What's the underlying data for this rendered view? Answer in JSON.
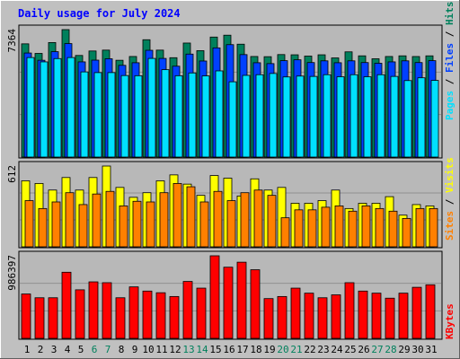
{
  "chart_data": {
    "type": "bar",
    "title": "Daily usage for July 2024",
    "categories": [
      "1",
      "2",
      "3",
      "4",
      "5",
      "6",
      "7",
      "8",
      "9",
      "10",
      "11",
      "12",
      "13",
      "14",
      "15",
      "16",
      "17",
      "18",
      "19",
      "20",
      "21",
      "22",
      "23",
      "24",
      "25",
      "26",
      "27",
      "28",
      "29",
      "30",
      "31"
    ],
    "weekend_days": [
      "6",
      "7",
      "13",
      "14",
      "20",
      "21",
      "27",
      "28"
    ],
    "colors": {
      "background": "#c0c0c0",
      "plot": "#b8b8b8",
      "title": "#0000ff",
      "hits": "#00805c",
      "files": "#0040ff",
      "pages": "#00e0ff",
      "visits": "#ffff00",
      "sites": "#ff8000",
      "kbytes": "#ff0000",
      "weekend_label": "#00805c",
      "weekday_label": "#000000"
    },
    "panels": [
      {
        "id": "requests",
        "max_label": "7364",
        "ymax": 7364,
        "legend": [
          "Pages",
          "Files",
          "Hits"
        ],
        "series": [
          {
            "name": "Hits",
            "color": "#00805c",
            "values": [
              6542,
              5989,
              6617,
              7364,
              5871,
              6129,
              6180,
              5593,
              5811,
              6780,
              6179,
              5741,
              6588,
              6147,
              6934,
              7042,
              6522,
              5811,
              5800,
              5922,
              5909,
              5835,
              5909,
              5729,
              6080,
              5849,
              5680,
              5811,
              5849,
              5809,
              5849
            ]
          },
          {
            "name": "Files",
            "color": "#0040ff",
            "values": [
              6012,
              5593,
              6090,
              6557,
              5500,
              5600,
              5680,
              5300,
              5450,
              6170,
              5700,
              5250,
              5950,
              5550,
              6309,
              6495,
              5920,
              5450,
              5400,
              5570,
              5620,
              5460,
              5560,
              5450,
              5560,
              5460,
              5420,
              5500,
              5560,
              5460,
              5570
            ]
          },
          {
            "name": "Pages",
            "color": "#00e0ff",
            "values": [
              5750,
              5500,
              5690,
              5750,
              4920,
              4880,
              4880,
              4710,
              4700,
              5700,
              5050,
              4700,
              4860,
              4690,
              4980,
              4350,
              4720,
              4760,
              4830,
              4630,
              4680,
              4660,
              4760,
              4640,
              4760,
              4640,
              4760,
              4660,
              4420,
              4580,
              4430
            ]
          }
        ]
      },
      {
        "id": "visitors",
        "max_label": "612",
        "ymax": 612,
        "legend": [
          "Sites",
          "Visits"
        ],
        "series": [
          {
            "name": "Visits",
            "color": "#ffff00",
            "values": [
              500,
              480,
              430,
              525,
              430,
              525,
              612,
              450,
              375,
              410,
              500,
              545,
              475,
              390,
              540,
              520,
              385,
              515,
              430,
              450,
              330,
              330,
              350,
              430,
              290,
              330,
              330,
              380,
              240,
              320,
              310
            ]
          },
          {
            "name": "Sites",
            "color": "#ff8000",
            "values": [
              350,
              290,
              340,
              410,
              320,
              400,
              420,
              310,
              345,
              340,
              410,
              480,
              455,
              340,
              420,
              350,
              410,
              430,
              390,
              220,
              280,
              280,
              300,
              310,
              270,
              310,
              290,
              270,
              215,
              290,
              290
            ]
          }
        ]
      },
      {
        "id": "traffic",
        "max_label": "986397",
        "ymax": 986397,
        "legend": [
          "KBytes"
        ],
        "series": [
          {
            "name": "KBytes",
            "color": "#ff0000",
            "values": [
              530000,
              485000,
              485000,
              790000,
              580000,
              675000,
              665000,
              485000,
              615000,
              565000,
              545000,
              500000,
              680000,
              600000,
              986397,
              850000,
              910000,
              820000,
              475000,
              500000,
              600000,
              540000,
              485000,
              520000,
              665000,
              565000,
              540000,
              480000,
              540000,
              610000,
              640000
            ]
          }
        ]
      }
    ]
  }
}
